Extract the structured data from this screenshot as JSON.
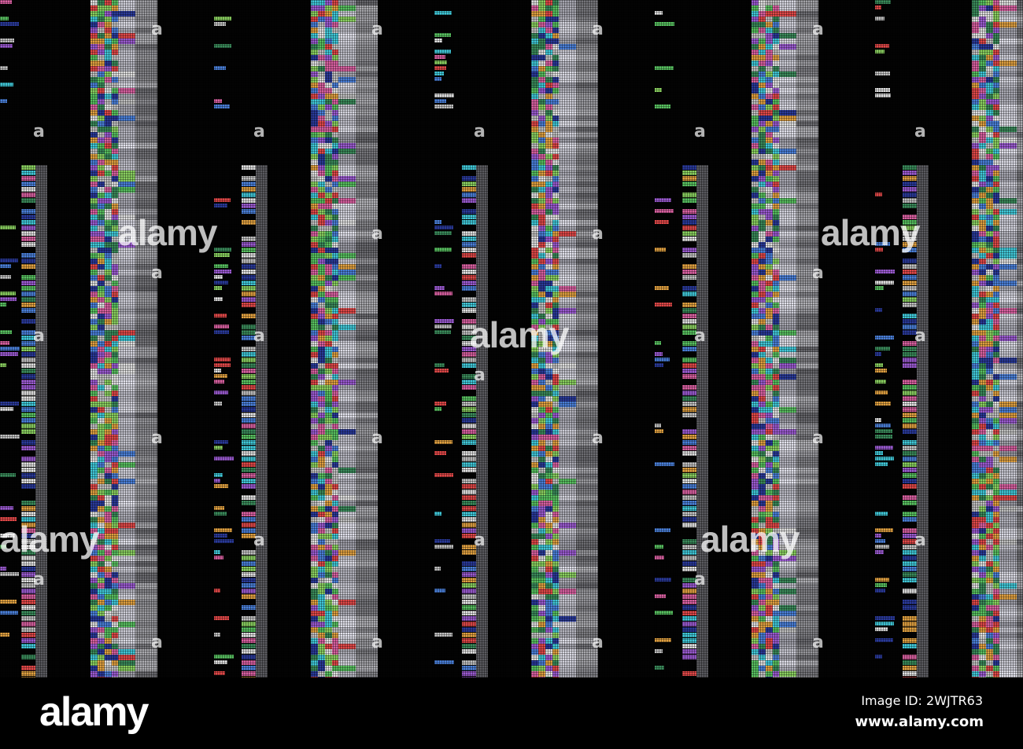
{
  "photo": {
    "subject": "glitch",
    "palette": [
      "#e0e0e0",
      "#4a7fd8",
      "#58c060",
      "#e04848",
      "#9a5ad0",
      "#40c8d8",
      "#e0a040",
      "#d860a0",
      "#2a3a9a",
      "#8ad060",
      "#c0c0c0",
      "#3a8a5a"
    ],
    "background": "#030303"
  },
  "watermark": {
    "text": "alamy",
    "icon_text": "a"
  },
  "footer": {
    "logo": "alamy",
    "image_id": "Image ID: 2WJTR63",
    "site": "www.alamy.com"
  }
}
